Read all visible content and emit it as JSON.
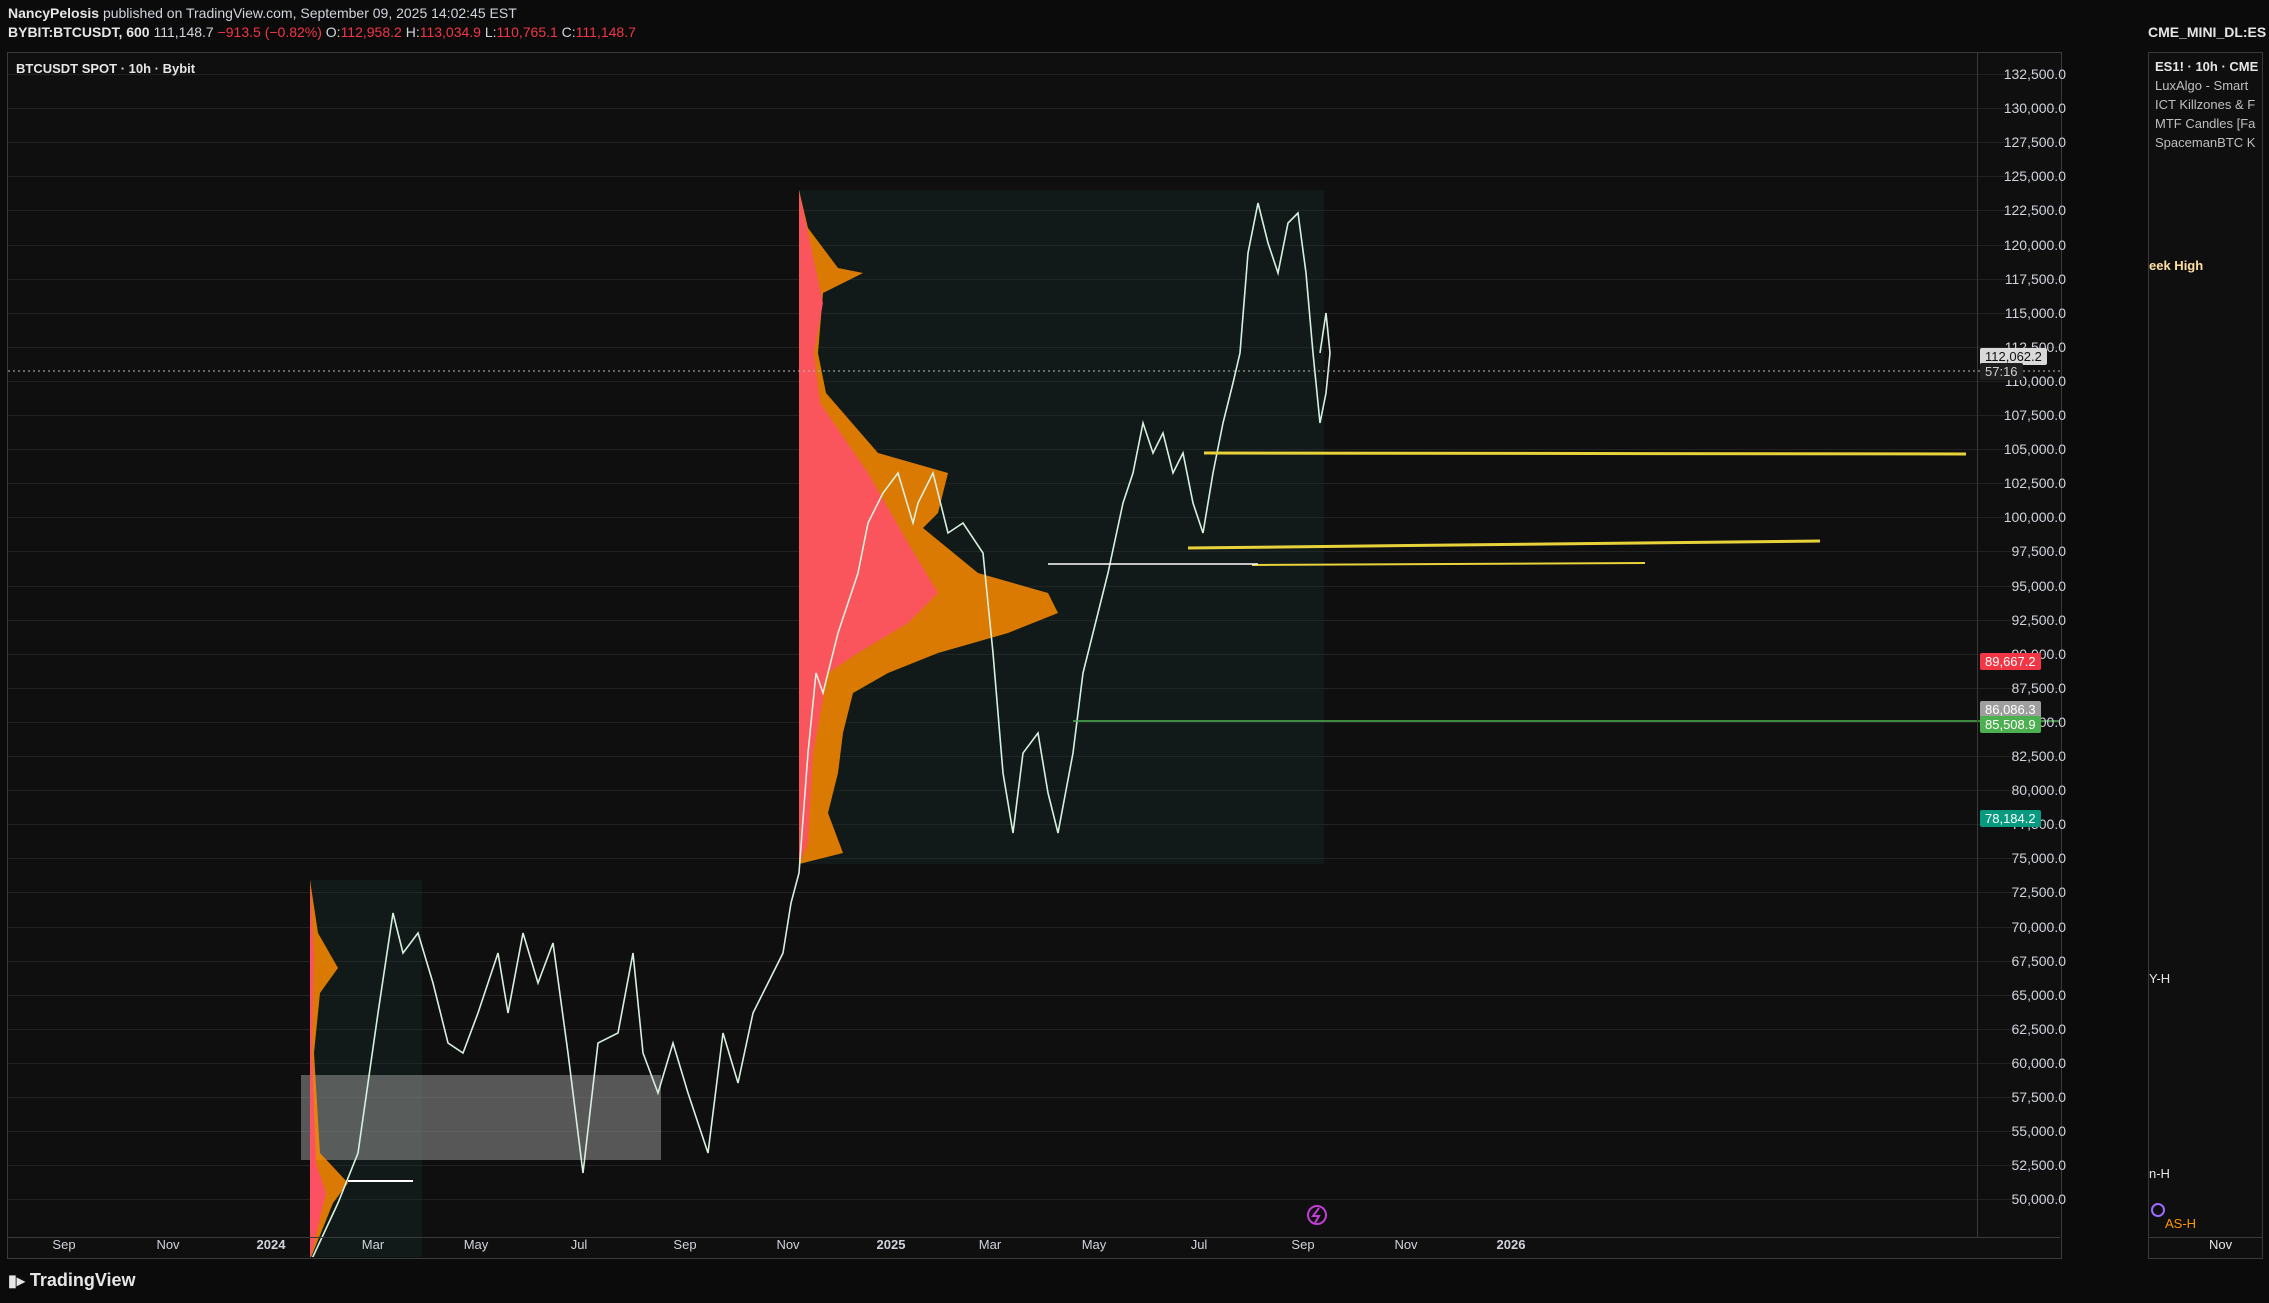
{
  "header": {
    "author": "NancyPelosis",
    "published_text": "published on TradingView.com, September 09, 2025 14:02:45 EST",
    "symbol": "BYBIT:BTCUSDT, 600",
    "last": "111,148.7",
    "change": "−913.5 (−0.82%)",
    "o_label": "O:",
    "o_val": "112,958.2",
    "h_label": "H:",
    "h_val": "113,034.9",
    "l_label": "L:",
    "l_val": "110,765.1",
    "c_label": "C:",
    "c_val": "111,148.7",
    "right_symbol": "CME_MINI_DL:ES"
  },
  "chart": {
    "legend": "BTCUSDT SPOT · 10h · Bybit",
    "current_price": "112,062.2",
    "countdown": "57:16",
    "tag_red": "89,667.2",
    "tag_gray": "86,086.3",
    "tag_green": "85,508.9",
    "tag_teal": "78,184.2",
    "y_labels": [
      "132,500.0",
      "130,000.0",
      "127,500.0",
      "125,000.0",
      "122,500.0",
      "120,000.0",
      "117,500.0",
      "115,000.0",
      "112,500.0",
      "110,000.0",
      "107,500.0",
      "105,000.0",
      "102,500.0",
      "100,000.0",
      "97,500.0",
      "95,000.0",
      "92,500.0",
      "90,000.0",
      "87,500.0",
      "85,000.0",
      "82,500.0",
      "80,000.0",
      "77,500.0",
      "75,000.0",
      "72,500.0",
      "70,000.0",
      "67,500.0",
      "65,000.0",
      "62,500.0",
      "60,000.0",
      "57,500.0",
      "55,000.0",
      "52,500.0",
      "50,000.0"
    ],
    "x_labels": [
      "Sep",
      "Nov",
      "2024",
      "Mar",
      "May",
      "Jul",
      "Sep",
      "Nov",
      "2025",
      "Mar",
      "May",
      "Jul",
      "Sep",
      "Nov",
      "2026"
    ]
  },
  "side": {
    "title": "ES1! · 10h · CME",
    "indicators": [
      "LuxAlgo - Smart",
      "ICT Killzones & F",
      "MTF Candles [Fa",
      "SpacemanBTC K"
    ],
    "week_high": "eek High",
    "y_h": "Y-H",
    "n_h": "n-H",
    "as_h": "AS-H",
    "x_label": "Nov"
  },
  "footer": {
    "brand": "TradingView"
  }
}
